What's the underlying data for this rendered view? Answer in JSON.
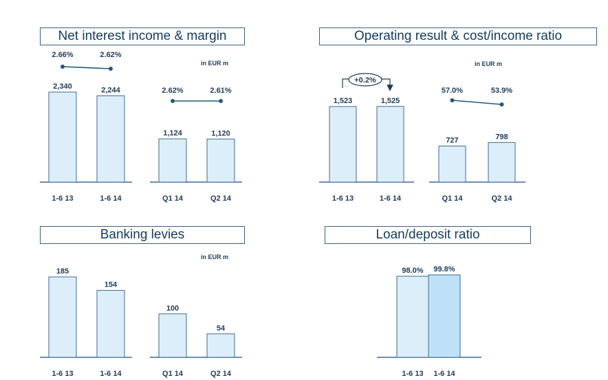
{
  "chart_data": [
    {
      "id": "nii",
      "type": "bar",
      "title": "Net interest income & margin",
      "unit": "in EUR m",
      "groups": [
        {
          "categories": [
            "1-6 13",
            "1-6 14"
          ],
          "values": [
            2340,
            2244
          ],
          "value_labels": [
            "2,340",
            "2,244"
          ],
          "ratio": [
            2.66,
            2.62
          ],
          "ratio_labels": [
            "2.66%",
            "2.62%"
          ]
        },
        {
          "categories": [
            "Q1 14",
            "Q2 14"
          ],
          "values": [
            1124,
            1120
          ],
          "value_labels": [
            "1,124",
            "1,120"
          ],
          "ratio": [
            2.62,
            2.61
          ],
          "ratio_labels": [
            "2.62%",
            "2.61%"
          ]
        }
      ]
    },
    {
      "id": "op",
      "type": "bar",
      "title": "Operating result & cost/income ratio",
      "unit": "in EUR m",
      "callout": "+0.2%",
      "groups": [
        {
          "categories": [
            "1-6 13",
            "1-6 14"
          ],
          "values": [
            1523,
            1525
          ],
          "value_labels": [
            "1,523",
            "1,525"
          ]
        },
        {
          "categories": [
            "Q1 14",
            "Q2 14"
          ],
          "values": [
            727,
            798
          ],
          "value_labels": [
            "727",
            "798"
          ],
          "ratio": [
            57.0,
            53.9
          ],
          "ratio_labels": [
            "57.0%",
            "53.9%"
          ]
        }
      ]
    },
    {
      "id": "levies",
      "type": "bar",
      "title": "Banking levies",
      "unit": "in EUR m",
      "groups": [
        {
          "categories": [
            "1-6 13",
            "1-6 14"
          ],
          "values": [
            185,
            154
          ],
          "value_labels": [
            "185",
            "154"
          ]
        },
        {
          "categories": [
            "Q1 14",
            "Q2 14"
          ],
          "values": [
            100,
            54
          ],
          "value_labels": [
            "100",
            "54"
          ]
        }
      ]
    },
    {
      "id": "ldr",
      "type": "bar",
      "title": "Loan/deposit ratio",
      "unit": "",
      "groups": [
        {
          "categories": [
            "1-6 13",
            "1-6 14"
          ],
          "values": [
            98.0,
            99.8
          ],
          "value_labels": [
            "98.0%",
            "99.8%"
          ]
        }
      ]
    }
  ]
}
